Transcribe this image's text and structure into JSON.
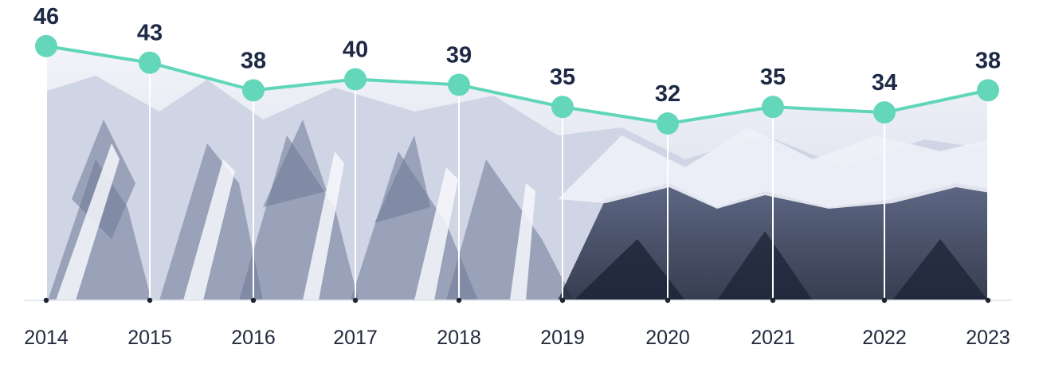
{
  "chart_data": {
    "type": "area",
    "title": "",
    "xlabel": "",
    "ylabel": "",
    "categories": [
      "2014",
      "2015",
      "2016",
      "2017",
      "2018",
      "2019",
      "2020",
      "2021",
      "2022",
      "2023"
    ],
    "values": [
      46,
      43,
      38,
      40,
      39,
      35,
      32,
      35,
      34,
      38
    ],
    "data_labels": [
      "46",
      "43",
      "38",
      "40",
      "39",
      "35",
      "32",
      "35",
      "34",
      "38"
    ],
    "ylim": [
      0,
      48
    ],
    "grid": false,
    "legend": "none",
    "fill": "snowy-mountain-photo",
    "colors": {
      "line": "#5fd6b9",
      "marker": "#64d7bb",
      "label": "#1e2a45",
      "axis_text": "#232b3d",
      "baseline": "#e6e8ef",
      "tick_dot": "#1f2433",
      "drop_line": "#ffffff",
      "sky": "#eef0f6",
      "snow": "#f7f8fc",
      "rock": "#6e7896",
      "rock_dark": "#3a4262",
      "forest": "#1c2336"
    }
  }
}
